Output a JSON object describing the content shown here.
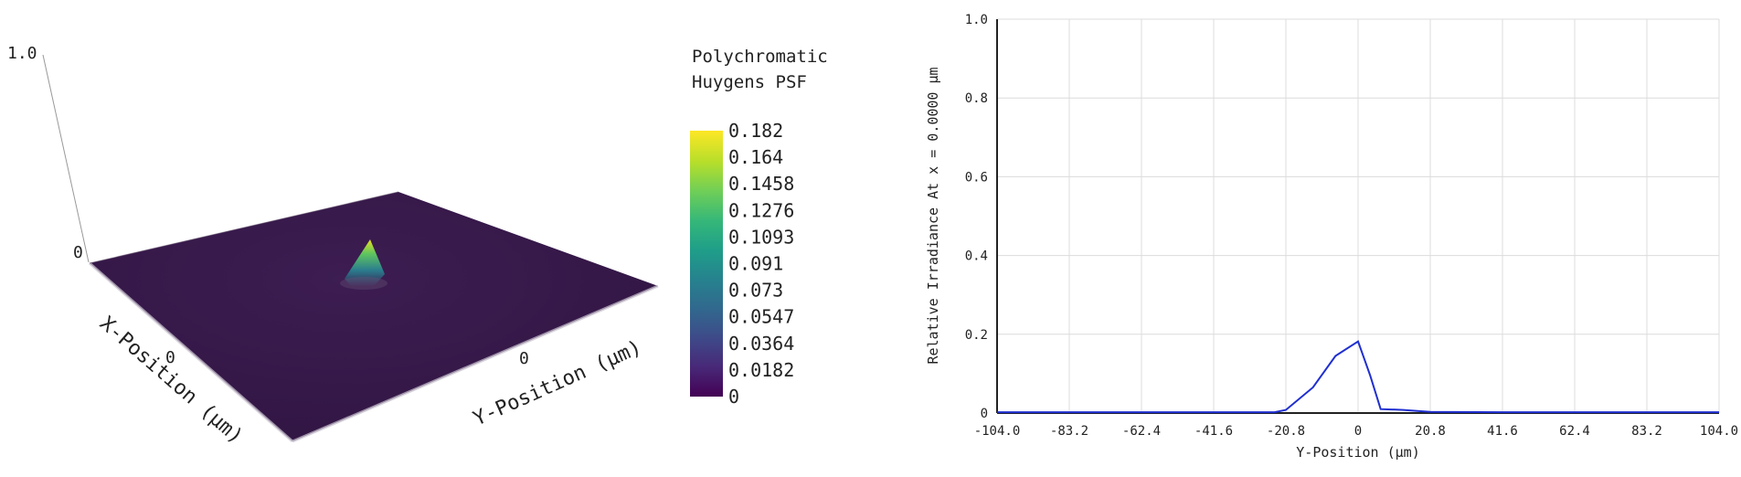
{
  "surface": {
    "z_top_label": "1.0",
    "z_zero_label": "0",
    "x_axis_label": "X-Position (µm)",
    "x_tick_label": "0",
    "y_axis_label": "Y-Position (µm)",
    "y_tick_label": "0",
    "legend_title_line1": "Polychromatic",
    "legend_title_line2": "Huygens PSF",
    "colorbar_ticks": [
      "0.182",
      "0.164",
      "0.1458",
      "0.1276",
      "0.1093",
      "0.091",
      "0.073",
      "0.0547",
      "0.0364",
      "0.0182",
      "0"
    ],
    "colormap": "viridis",
    "surface_color": "#3b1a4e"
  },
  "chart_data": {
    "type": "line",
    "xlabel": "Y-Position (µm)",
    "ylabel": "Relative Irradiance At x = 0.0000 µm",
    "xlim": [
      -104.0,
      104.0
    ],
    "ylim": [
      0,
      1.0
    ],
    "xticks": [
      "-104.0",
      "-83.2",
      "-62.4",
      "-41.6",
      "-20.8",
      "0",
      "20.8",
      "41.6",
      "62.4",
      "83.2",
      "104.0"
    ],
    "yticks": [
      "0",
      "0.2",
      "0.4",
      "0.6",
      "0.8",
      "1.0"
    ],
    "grid": true,
    "series": [
      {
        "color": "#1f2fd0",
        "x": [
          -104.0,
          -83.2,
          -62.4,
          -41.6,
          -24.0,
          -20.8,
          -13.0,
          -6.5,
          0,
          3.5,
          6.5,
          13.0,
          20.8,
          41.6,
          62.4,
          83.2,
          104.0
        ],
        "values": [
          0.002,
          0.002,
          0.002,
          0.002,
          0.002,
          0.008,
          0.065,
          0.145,
          0.182,
          0.095,
          0.01,
          0.008,
          0.003,
          0.002,
          0.002,
          0.002,
          0.002
        ]
      }
    ]
  }
}
